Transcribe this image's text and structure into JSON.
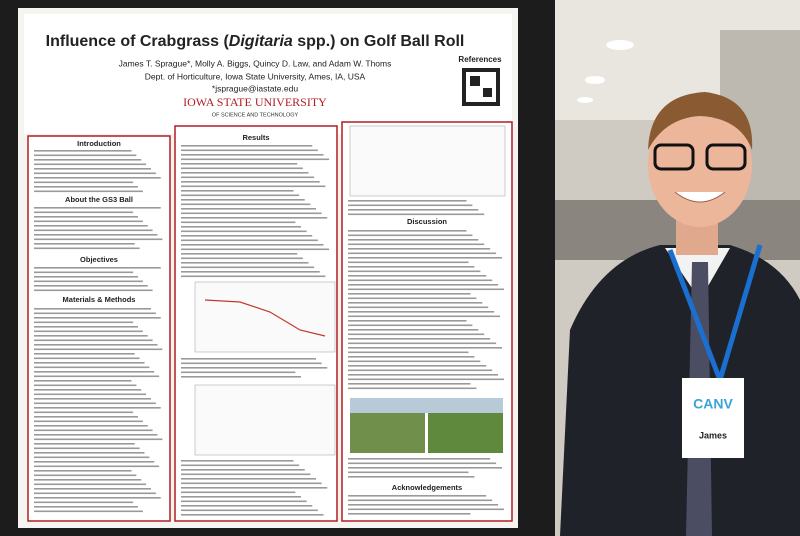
{
  "poster": {
    "title": {
      "before": "Influence of Crabgrass (",
      "italic": "Digitaria",
      "after": " spp.) on Golf Ball Roll"
    },
    "authors": "James T. Sprague*, Molly A. Biggs, Quincy D. Law, and Adam W. Thoms",
    "affiliation": "Dept. of Horticulture, Iowa State University, Ames, IA, USA",
    "email": "*jsprague@iastate.edu",
    "references": "References",
    "university": "IOWA STATE UNIVERSITY",
    "university_sub": "OF SCIENCE AND TECHNOLOGY",
    "sections": {
      "introduction": "Introduction",
      "gs3": "About the GS3 Ball",
      "objectives": "Objectives",
      "methods": "Materials & Methods",
      "results": "Results",
      "discussion": "Discussion",
      "acknowledgements": "Acknowledgements"
    }
  },
  "badge": {
    "event": "CANV",
    "name": "James"
  }
}
